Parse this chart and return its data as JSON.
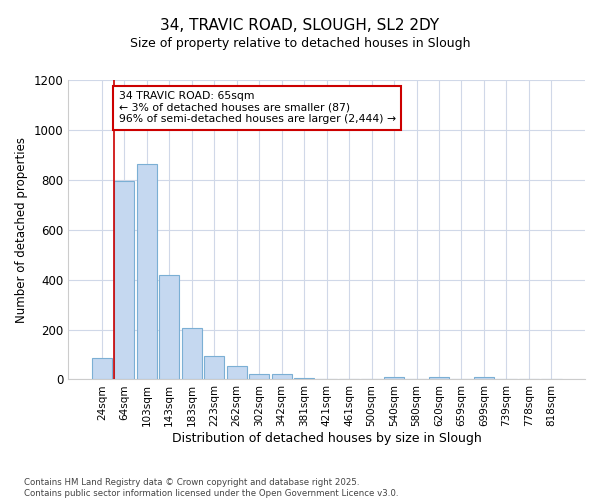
{
  "title_line1": "34, TRAVIC ROAD, SLOUGH, SL2 2DY",
  "title_line2": "Size of property relative to detached houses in Slough",
  "xlabel": "Distribution of detached houses by size in Slough",
  "ylabel": "Number of detached properties",
  "bar_labels": [
    "24sqm",
    "64sqm",
    "103sqm",
    "143sqm",
    "183sqm",
    "223sqm",
    "262sqm",
    "302sqm",
    "342sqm",
    "381sqm",
    "421sqm",
    "461sqm",
    "500sqm",
    "540sqm",
    "580sqm",
    "620sqm",
    "659sqm",
    "699sqm",
    "739sqm",
    "778sqm",
    "818sqm"
  ],
  "bar_values": [
    87,
    795,
    865,
    420,
    207,
    95,
    55,
    22,
    22,
    5,
    0,
    0,
    0,
    8,
    0,
    8,
    0,
    8,
    0,
    0,
    0
  ],
  "bar_color": "#c5d8f0",
  "bar_edge_color": "#7bafd4",
  "background_color": "#ffffff",
  "grid_color": "#d0d8e8",
  "red_line_x": 0.55,
  "annotation_text": "34 TRAVIC ROAD: 65sqm\n← 3% of detached houses are smaller (87)\n96% of semi-detached houses are larger (2,444) →",
  "annotation_box_color": "#ffffff",
  "annotation_box_edge": "#cc0000",
  "ylim": [
    0,
    1200
  ],
  "yticks": [
    0,
    200,
    400,
    600,
    800,
    1000,
    1200
  ],
  "footer_line1": "Contains HM Land Registry data © Crown copyright and database right 2025.",
  "footer_line2": "Contains public sector information licensed under the Open Government Licence v3.0."
}
